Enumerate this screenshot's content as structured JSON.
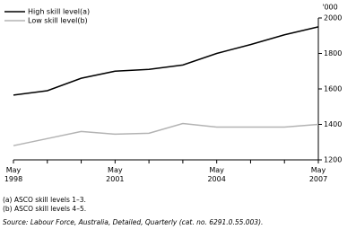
{
  "chart_data": {
    "type": "line",
    "y_axis_label": "'000",
    "categories": [
      "May 1998",
      null,
      null,
      "May 2001",
      null,
      null,
      "May 2004",
      null,
      null,
      "May 2007"
    ],
    "series": [
      {
        "name": "High skill level(a)",
        "color": "#000000",
        "values": [
          1565,
          1590,
          1660,
          1700,
          1710,
          1735,
          1800,
          1850,
          1905,
          1950
        ]
      },
      {
        "name": "Low skill level(b)",
        "color": "#b3b3b3",
        "values": [
          1280,
          1320,
          1360,
          1345,
          1350,
          1405,
          1385,
          1385,
          1385,
          1400
        ]
      }
    ],
    "ylim": [
      1200,
      2000
    ],
    "yticks": [
      1200,
      1400,
      1600,
      1800,
      2000
    ],
    "grid": false,
    "notes": [
      "(a) ASCO skill levels 1–3.",
      "(b) ASCO skill levels 4–5."
    ],
    "source": "Source: Labour Force, Australia, Detailed, Quarterly (cat. no. 6291.0.55.003)."
  }
}
